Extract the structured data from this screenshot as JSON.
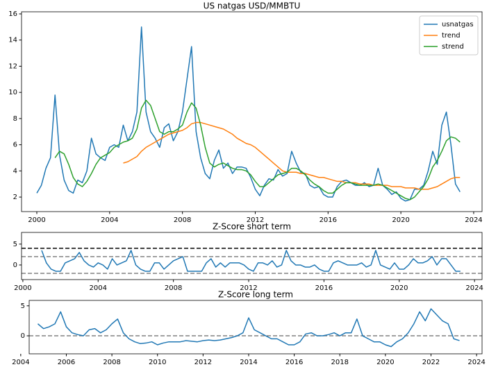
{
  "chart_data": [
    {
      "type": "line",
      "title": "US natgas USD/MMBTU",
      "legend": "upper right",
      "x": [
        2000,
        2000.25,
        2000.5,
        2000.75,
        2001,
        2001.25,
        2001.5,
        2001.75,
        2002,
        2002.25,
        2002.5,
        2002.75,
        2003,
        2003.25,
        2003.5,
        2003.75,
        2004,
        2004.25,
        2004.5,
        2004.75,
        2005,
        2005.25,
        2005.5,
        2005.75,
        2006,
        2006.25,
        2006.5,
        2006.75,
        2007,
        2007.25,
        2007.5,
        2007.75,
        2008,
        2008.25,
        2008.5,
        2008.75,
        2009,
        2009.25,
        2009.5,
        2009.75,
        2010,
        2010.25,
        2010.5,
        2010.75,
        2011,
        2011.25,
        2011.5,
        2011.75,
        2012,
        2012.25,
        2012.5,
        2012.75,
        2013,
        2013.25,
        2013.5,
        2013.75,
        2014,
        2014.25,
        2014.5,
        2014.75,
        2015,
        2015.25,
        2015.5,
        2015.75,
        2016,
        2016.25,
        2016.5,
        2016.75,
        2017,
        2017.25,
        2017.5,
        2017.75,
        2018,
        2018.25,
        2018.5,
        2018.75,
        2019,
        2019.25,
        2019.5,
        2019.75,
        2020,
        2020.25,
        2020.5,
        2020.75,
        2021,
        2021.25,
        2021.5,
        2021.75,
        2022,
        2022.25,
        2022.5,
        2022.75,
        2023,
        2023.25
      ],
      "series": [
        {
          "name": "usnatgas",
          "color": "#1f77b4",
          "values": [
            2.3,
            2.9,
            4.2,
            5.0,
            9.8,
            5.2,
            3.3,
            2.5,
            2.3,
            3.3,
            3.1,
            4.0,
            6.5,
            5.3,
            5.0,
            4.8,
            5.8,
            6.0,
            5.8,
            7.5,
            6.3,
            7.0,
            8.5,
            15.0,
            8.5,
            7.0,
            6.5,
            5.8,
            7.3,
            7.6,
            6.3,
            7.0,
            8.5,
            11.0,
            13.5,
            7.0,
            5.0,
            3.8,
            3.4,
            4.8,
            5.6,
            4.2,
            4.6,
            3.8,
            4.3,
            4.3,
            4.2,
            3.5,
            2.6,
            2.1,
            2.9,
            3.4,
            3.3,
            4.1,
            3.6,
            3.8,
            5.5,
            4.6,
            3.9,
            3.8,
            2.9,
            2.7,
            2.8,
            2.2,
            2.0,
            2.0,
            2.8,
            3.2,
            3.3,
            3.1,
            2.9,
            2.9,
            3.1,
            2.8,
            2.9,
            4.2,
            2.9,
            2.6,
            2.2,
            2.4,
            1.9,
            1.7,
            1.8,
            2.6,
            2.6,
            2.9,
            4.0,
            5.5,
            4.5,
            7.5,
            8.5,
            6.0,
            3.0,
            2.4
          ]
        },
        {
          "name": "trend",
          "color": "#ff7f0e",
          "values": [
            null,
            null,
            null,
            null,
            null,
            null,
            null,
            null,
            null,
            null,
            null,
            null,
            null,
            null,
            null,
            null,
            null,
            null,
            null,
            4.6,
            4.7,
            4.9,
            5.1,
            5.5,
            5.8,
            6.0,
            6.2,
            6.4,
            6.6,
            6.8,
            6.9,
            7.0,
            7.1,
            7.3,
            7.6,
            7.7,
            7.7,
            7.6,
            7.5,
            7.4,
            7.3,
            7.2,
            7.0,
            6.8,
            6.5,
            6.3,
            6.1,
            6.0,
            5.8,
            5.5,
            5.2,
            4.9,
            4.6,
            4.3,
            4.0,
            3.9,
            3.9,
            3.9,
            3.8,
            3.8,
            3.7,
            3.6,
            3.5,
            3.5,
            3.4,
            3.3,
            3.2,
            3.2,
            3.1,
            3.1,
            3.1,
            3.0,
            3.0,
            3.0,
            2.9,
            2.9,
            2.9,
            2.9,
            2.8,
            2.8,
            2.8,
            2.7,
            2.7,
            2.7,
            2.6,
            2.6,
            2.6,
            2.7,
            2.8,
            3.0,
            3.2,
            3.4,
            3.5,
            3.5
          ]
        },
        {
          "name": "strend",
          "color": "#2ca02c",
          "values": [
            null,
            null,
            null,
            null,
            5.0,
            5.5,
            5.3,
            4.5,
            3.5,
            3.0,
            2.8,
            3.2,
            3.8,
            4.5,
            5.0,
            5.2,
            5.4,
            5.8,
            6.0,
            6.2,
            6.3,
            6.5,
            7.2,
            8.8,
            9.4,
            9.0,
            8.0,
            7.0,
            6.8,
            7.0,
            7.0,
            7.2,
            7.5,
            8.5,
            9.2,
            8.8,
            7.5,
            5.8,
            4.6,
            4.3,
            4.5,
            4.6,
            4.4,
            4.2,
            4.1,
            4.1,
            4.0,
            3.7,
            3.2,
            2.8,
            2.8,
            3.1,
            3.4,
            3.7,
            3.8,
            3.9,
            4.2,
            4.2,
            4.0,
            3.7,
            3.3,
            3.0,
            2.8,
            2.5,
            2.3,
            2.3,
            2.6,
            2.9,
            3.1,
            3.1,
            3.0,
            2.9,
            2.9,
            2.9,
            2.9,
            3.0,
            2.9,
            2.7,
            2.5,
            2.3,
            2.1,
            1.9,
            1.8,
            2.0,
            2.4,
            2.8,
            3.4,
            4.3,
            4.8,
            5.5,
            6.3,
            6.6,
            6.5,
            6.2
          ]
        }
      ],
      "xlim": [
        1999.16,
        2024.46
      ],
      "ylim": [
        0.89,
        16.16
      ],
      "xticks": [
        2000,
        2004,
        2008,
        2012,
        2016,
        2020,
        2024
      ],
      "yticks": [
        2,
        4,
        6,
        8,
        10,
        12,
        14,
        16
      ]
    },
    {
      "type": "line",
      "title": "Z-Score short term",
      "x": [
        2001,
        2001.25,
        2001.5,
        2001.75,
        2002,
        2002.25,
        2002.5,
        2002.75,
        2003,
        2003.25,
        2003.5,
        2003.75,
        2004,
        2004.25,
        2004.5,
        2004.75,
        2005,
        2005.25,
        2005.5,
        2005.75,
        2006,
        2006.25,
        2006.5,
        2006.75,
        2007,
        2007.25,
        2007.5,
        2007.75,
        2008,
        2008.25,
        2008.5,
        2008.75,
        2009,
        2009.25,
        2009.5,
        2009.75,
        2010,
        2010.25,
        2010.5,
        2010.75,
        2011,
        2011.25,
        2011.5,
        2011.75,
        2012,
        2012.25,
        2012.5,
        2012.75,
        2013,
        2013.25,
        2013.5,
        2013.75,
        2014,
        2014.25,
        2014.5,
        2014.75,
        2015,
        2015.25,
        2015.5,
        2015.75,
        2016,
        2016.25,
        2016.5,
        2016.75,
        2017,
        2017.25,
        2017.5,
        2017.75,
        2018,
        2018.25,
        2018.5,
        2018.75,
        2019,
        2019.25,
        2019.5,
        2019.75,
        2020,
        2020.25,
        2020.5,
        2020.75,
        2021,
        2021.25,
        2021.5,
        2021.75,
        2022,
        2022.25,
        2022.5,
        2022.75,
        2023,
        2023.25
      ],
      "series": [
        {
          "color": "#1f77b4",
          "values": [
            3.5,
            0.5,
            -1,
            -1.5,
            -1.5,
            0.5,
            1,
            1.5,
            3,
            1,
            0,
            -0.5,
            0.5,
            0,
            -1,
            1.5,
            0,
            0.5,
            1,
            3.5,
            0,
            -1,
            -1.5,
            -1.5,
            0.5,
            0.5,
            -1,
            0,
            1,
            1.5,
            2,
            -1.5,
            -1.5,
            -1.5,
            -1.5,
            0.5,
            1.5,
            -0.5,
            0.5,
            -0.5,
            0.5,
            0.5,
            0.5,
            0,
            -1,
            -1.5,
            0.5,
            0.5,
            0,
            1,
            -0.5,
            0,
            3.5,
            1,
            0,
            0,
            -0.5,
            -0.5,
            0,
            -1,
            -1.5,
            -1.5,
            0.5,
            1,
            0.5,
            0,
            0,
            0,
            0.5,
            -0.5,
            0,
            3.5,
            0,
            -0.5,
            -1,
            0.5,
            -1,
            -1,
            0,
            1.5,
            0.5,
            0.5,
            1,
            2,
            0,
            1.5,
            1.5,
            0,
            -1.5,
            -1.5
          ]
        }
      ],
      "hlines": [
        {
          "value": 4,
          "color": "#000000"
        },
        {
          "value": 2,
          "color": "#808080"
        },
        {
          "value": -2,
          "color": "#808080"
        }
      ],
      "xlim": [
        1999.93,
        2024.4
      ],
      "ylim": [
        -3.5,
        7.8
      ],
      "xticks": [
        2000,
        2004,
        2008,
        2012,
        2016,
        2020,
        2024
      ],
      "yticks": [
        0,
        5
      ]
    },
    {
      "type": "line",
      "title": "Z-Score long term",
      "x": [
        2004.75,
        2005,
        2005.25,
        2005.5,
        2005.75,
        2006,
        2006.25,
        2006.5,
        2006.75,
        2007,
        2007.25,
        2007.5,
        2007.75,
        2008,
        2008.25,
        2008.5,
        2008.75,
        2009,
        2009.25,
        2009.5,
        2009.75,
        2010,
        2010.25,
        2010.5,
        2010.75,
        2011,
        2011.25,
        2011.5,
        2011.75,
        2012,
        2012.25,
        2012.5,
        2012.75,
        2013,
        2013.25,
        2013.5,
        2013.75,
        2014,
        2014.25,
        2014.5,
        2014.75,
        2015,
        2015.25,
        2015.5,
        2015.75,
        2016,
        2016.25,
        2016.5,
        2016.75,
        2017,
        2017.25,
        2017.5,
        2017.75,
        2018,
        2018.25,
        2018.5,
        2018.75,
        2019,
        2019.25,
        2019.5,
        2019.75,
        2020,
        2020.25,
        2020.5,
        2020.75,
        2021,
        2021.25,
        2021.5,
        2021.75,
        2022,
        2022.25,
        2022.5,
        2022.75,
        2023,
        2023.25
      ],
      "series": [
        {
          "color": "#1f77b4",
          "values": [
            2.0,
            1.2,
            1.5,
            2.0,
            4.0,
            1.5,
            0.5,
            0.2,
            0.0,
            1.0,
            1.2,
            0.5,
            1.0,
            2.0,
            2.8,
            0.5,
            -0.5,
            -1.0,
            -1.3,
            -1.2,
            -1.0,
            -1.5,
            -1.2,
            -1.0,
            -1.0,
            -1.0,
            -0.8,
            -0.9,
            -1.0,
            -0.8,
            -0.7,
            -0.8,
            -0.7,
            -0.5,
            -0.3,
            0,
            0.5,
            3.0,
            1.0,
            0.5,
            0,
            -0.5,
            -0.5,
            -1.0,
            -1.5,
            -1.5,
            -1.0,
            0.3,
            0.5,
            0,
            0,
            0.2,
            0.5,
            0,
            0.5,
            0.5,
            2.8,
            0,
            -0.5,
            -1.0,
            -1.0,
            -1.5,
            -1.8,
            -1.0,
            -0.5,
            0.5,
            2.0,
            4.0,
            2.5,
            4.5,
            3.5,
            2.5,
            2.0,
            -0.5,
            -0.8
          ]
        }
      ],
      "hlines": [
        {
          "value": 0,
          "color": "#808080"
        }
      ],
      "xlim": [
        2004.37,
        2024.24
      ],
      "ylim": [
        -3.0,
        5.9
      ],
      "xticks": [
        2004,
        2006,
        2008,
        2010,
        2012,
        2014,
        2016,
        2018,
        2020,
        2022,
        2024
      ],
      "yticks": [
        0,
        5
      ]
    }
  ]
}
